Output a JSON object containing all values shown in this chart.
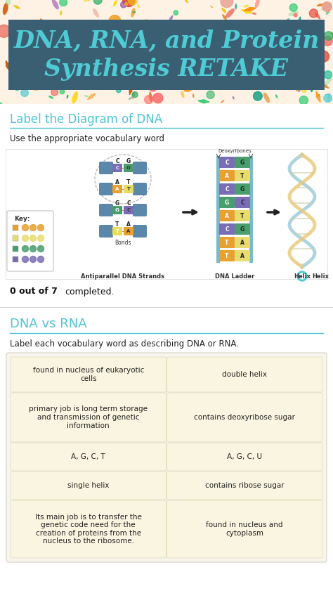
{
  "title_text": "DNA, RNA, and Protein\nSynthesis RETAKE",
  "title_bg_color": "#3a5f72",
  "title_text_color": "#4ecbd4",
  "page_bg_color": "#f2f5f7",
  "section1_title": "Label the Diagram of DNA",
  "section1_subtitle": "Use the appropriate vocabulary word",
  "section1_title_color": "#4fc3d4",
  "section2_title": "DNA vs RNA",
  "section2_subtitle": "Label each vocabulary word as describing DNA or RNA.",
  "section2_title_color": "#4fc3d4",
  "table_bg": "#f7f5ee",
  "cell_bg": "#faf5e0",
  "cell_border": "#e0d8b8",
  "table_cells": [
    [
      "found in nucleus of eukaryotic\ncells",
      "double helix"
    ],
    [
      "primary job is long term storage\nand transmission of genetic\ninformation",
      "contains deoxyribose sugar"
    ],
    [
      "A, G, C, T",
      "A, G, C, U"
    ],
    [
      "single helix",
      "contains ribose sugar"
    ],
    [
      "Its main job is to transfer the\ngenetic code need for the\ncreation of proteins from the\nnucleus to the ribosome.",
      "found in nucleus and\ncytoplasm"
    ]
  ],
  "ladder_pairs": [
    [
      [
        "#7b6db5",
        "C"
      ],
      [
        "#4a9e6e",
        "G"
      ]
    ],
    [
      [
        "#e8a030",
        "A"
      ],
      [
        "#e8dc70",
        "T"
      ]
    ],
    [
      [
        "#7b6db5",
        "C"
      ],
      [
        "#4a9e6e",
        "G"
      ]
    ],
    [
      [
        "#4a9e6e",
        "G"
      ],
      [
        "#7b6db5",
        "C"
      ]
    ],
    [
      [
        "#e8a030",
        "A"
      ],
      [
        "#e8dc70",
        "T"
      ]
    ],
    [
      [
        "#7b6db5",
        "C"
      ],
      [
        "#4a9e6e",
        "G"
      ]
    ],
    [
      [
        "#e8a030",
        "T"
      ],
      [
        "#e8dc70",
        "A"
      ]
    ],
    [
      [
        "#e8a030",
        "T"
      ],
      [
        "#e8dc70",
        "A"
      ]
    ]
  ],
  "rail_color": "#7ab8cc",
  "helix_color": "#7ab8cc",
  "floral_colors": [
    "#e74c3c",
    "#e67e22",
    "#f39c12",
    "#27ae60",
    "#2ecc71",
    "#d35400",
    "#c0392b",
    "#8e44ad",
    "#16a085",
    "#f1c40f",
    "#e8a090",
    "#a8e0a8",
    "#ff6b6b",
    "#ffd700",
    "#ff8c00"
  ],
  "key_colors": [
    "#e8a030",
    "#e8dc70",
    "#4a9e6e",
    "#7b6db5"
  ]
}
